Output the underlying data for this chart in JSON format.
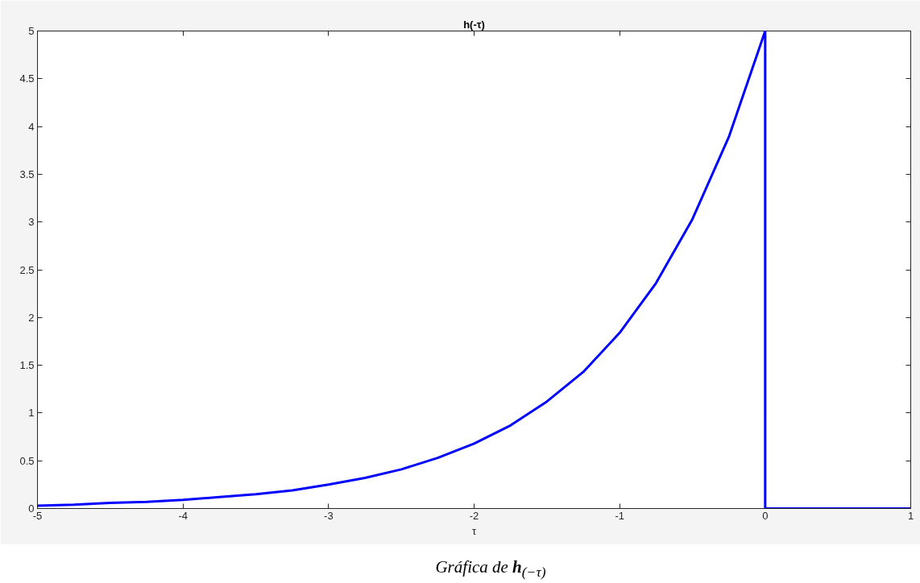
{
  "chart_data": {
    "type": "line",
    "title": "h(-τ)",
    "xlabel": "τ",
    "x": [
      -5,
      -4.75,
      -4.5,
      -4.25,
      -4,
      -3.75,
      -3.5,
      -3.25,
      -3,
      -2.75,
      -2.5,
      -2.25,
      -2,
      -1.75,
      -1.5,
      -1.25,
      -1,
      -0.75,
      -0.5,
      -0.25,
      0,
      0,
      1
    ],
    "series": [
      {
        "color": "#0000ff",
        "values": [
          0.03,
          0.04,
          0.06,
          0.07,
          0.09,
          0.12,
          0.15,
          0.19,
          0.25,
          0.32,
          0.41,
          0.53,
          0.68,
          0.87,
          1.12,
          1.43,
          1.84,
          2.36,
          3.03,
          3.89,
          5,
          0,
          0
        ]
      }
    ],
    "xlim": [
      -5,
      1
    ],
    "ylim": [
      0,
      5
    ],
    "xticks": [
      -5,
      -4,
      -3,
      -2,
      -1,
      0,
      1
    ],
    "yticks": [
      0,
      0.5,
      1,
      1.5,
      2,
      2.5,
      3,
      3.5,
      4,
      4.5,
      5
    ],
    "line_style": "solid",
    "annotations": [
      "Gráfica de h$_{(−τ)}$"
    ]
  }
}
